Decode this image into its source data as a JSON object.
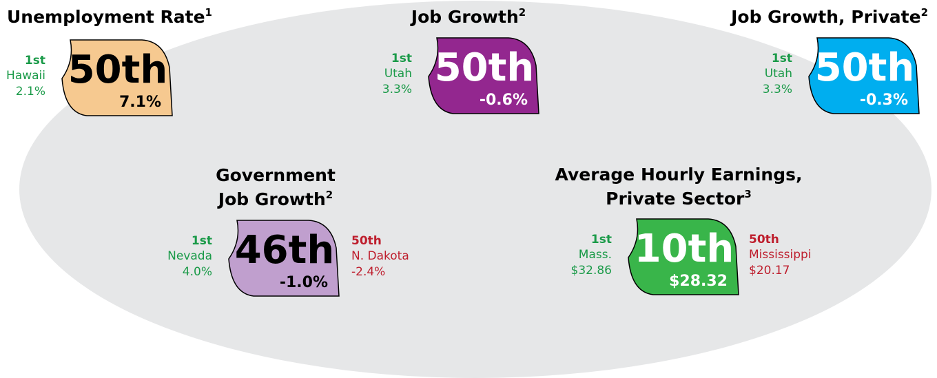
{
  "panels": [
    {
      "title_lines": [
        "Unemployment Rate"
      ],
      "note": "1",
      "rank": "50th",
      "value": "7.1%",
      "color": "#f6c990",
      "text_color": "#000000",
      "first": {
        "rank": "1st",
        "name": "Hawaii",
        "value": "2.1%"
      }
    },
    {
      "title_lines": [
        "Job Growth"
      ],
      "note": "2",
      "rank": "50th",
      "value": "-0.6%",
      "color": "#93278f",
      "text_color": "#ffffff",
      "first": {
        "rank": "1st",
        "name": "Utah",
        "value": "3.3%"
      }
    },
    {
      "title_lines": [
        "Job Growth, Private"
      ],
      "note": "2",
      "rank": "50th",
      "value": "-0.3%",
      "color": "#00aeef",
      "text_color": "#ffffff",
      "first": {
        "rank": "1st",
        "name": "Utah",
        "value": "3.3%"
      }
    },
    {
      "title_lines": [
        "Government",
        "Job Growth"
      ],
      "note": "2",
      "rank": "46th",
      "value": "-1.0%",
      "color": "#c09fce",
      "text_color": "#000000",
      "first": {
        "rank": "1st",
        "name": "Nevada",
        "value": "4.0%"
      },
      "last": {
        "rank": "50th",
        "name": "N. Dakota",
        "value": "-2.4%"
      }
    },
    {
      "title_lines": [
        "Average Hourly Earnings,",
        "Private Sector"
      ],
      "note": "3",
      "rank": "10th",
      "value": "$28.32",
      "color": "#39b54a",
      "text_color": "#ffffff",
      "first": {
        "rank": "1st",
        "name": "Mass.",
        "value": "$32.86"
      },
      "last": {
        "rank": "50th",
        "name": "Mississippi",
        "value": "$20.17"
      }
    }
  ]
}
